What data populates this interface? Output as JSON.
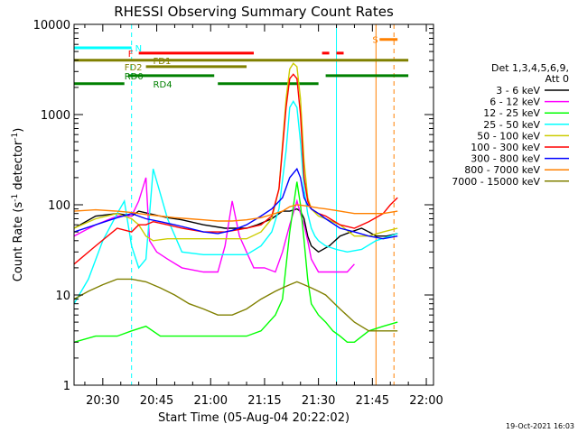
{
  "chart_data": {
    "type": "line",
    "title": "RHESSI Observing Summary Count Rates",
    "xlabel": "Start Time (05-Aug-04 20:22:02)",
    "ylabel_main": "Count Rate (s",
    "ylabel_sup1": "-1",
    "ylabel_mid": " detector",
    "ylabel_sup2": "-1",
    "ylabel_end": ")",
    "footer": "19-Oct-2021 16:03",
    "x_unit": "minutes since 20:22:02",
    "xlim": [
      0,
      100
    ],
    "ylim": [
      1,
      10000
    ],
    "y_scale": "log",
    "grid": false,
    "legend_position": "right",
    "x_ticks": [
      {
        "label": "20:30",
        "value": 8
      },
      {
        "label": "20:45",
        "value": 23
      },
      {
        "label": "21:00",
        "value": 38
      },
      {
        "label": "21:15",
        "value": 53
      },
      {
        "label": "21:30",
        "value": 68
      },
      {
        "label": "21:45",
        "value": 83
      },
      {
        "label": "22:00",
        "value": 98
      }
    ],
    "y_ticks": [
      {
        "label": "1",
        "value": 1
      },
      {
        "label": "10",
        "value": 10
      },
      {
        "label": "100",
        "value": 100
      },
      {
        "label": "1000",
        "value": 1000
      },
      {
        "label": "10000",
        "value": 10000
      }
    ],
    "legend_header": [
      "Det 1,3,4,5,6,9,",
      "Att 0"
    ],
    "series": [
      {
        "name": "3 - 6 keV",
        "color": "#000000",
        "x": [
          0,
          6,
          12,
          16,
          18,
          22,
          26,
          30,
          36,
          42,
          48,
          51,
          55,
          58,
          60,
          62,
          63,
          64,
          65,
          66,
          68,
          71,
          74,
          77,
          80,
          82,
          84,
          87,
          90
        ],
        "y": [
          55,
          75,
          80,
          75,
          85,
          78,
          72,
          68,
          60,
          55,
          55,
          60,
          70,
          85,
          85,
          90,
          85,
          70,
          45,
          35,
          30,
          35,
          45,
          50,
          55,
          50,
          45,
          45,
          48
        ]
      },
      {
        "name": "6 - 12 keV",
        "color": "#ff00ff",
        "x": [
          0,
          6,
          12,
          16,
          18,
          20,
          21,
          23,
          26,
          30,
          36,
          40,
          42,
          44,
          46,
          48,
          50,
          53,
          56,
          58,
          60,
          62,
          63,
          64,
          65,
          66,
          68,
          70,
          73,
          76,
          78
        ],
        "y": [
          45,
          60,
          75,
          75,
          110,
          200,
          40,
          30,
          25,
          20,
          18,
          18,
          35,
          110,
          45,
          30,
          20,
          20,
          18,
          30,
          60,
          110,
          80,
          60,
          40,
          25,
          18,
          18,
          18,
          18,
          22
        ]
      },
      {
        "name": "12 - 25 keV",
        "color": "#00ff00",
        "x": [
          0,
          6,
          12,
          16,
          20,
          24,
          28,
          32,
          36,
          40,
          44,
          48,
          52,
          56,
          58,
          60,
          62,
          63,
          64,
          65,
          66,
          68,
          70,
          72,
          74,
          76,
          78,
          82,
          86,
          90
        ],
        "y": [
          3,
          3.5,
          3.5,
          4,
          4.5,
          3.5,
          3.5,
          3.5,
          3.5,
          3.5,
          3.5,
          3.5,
          4,
          6,
          9,
          50,
          180,
          100,
          40,
          15,
          8,
          6,
          5,
          4,
          3.5,
          3,
          3,
          4,
          4.5,
          5
        ]
      },
      {
        "name": "25 - 50 keV",
        "color": "#00ffff",
        "x": [
          0,
          4,
          8,
          12,
          14,
          16,
          18,
          20,
          22,
          26,
          30,
          36,
          40,
          44,
          48,
          52,
          55,
          57,
          59,
          60,
          61,
          62,
          63,
          64,
          65,
          66,
          67,
          68,
          70,
          73,
          76,
          80,
          84,
          88,
          90
        ],
        "y": [
          8,
          15,
          40,
          80,
          110,
          35,
          20,
          25,
          250,
          70,
          30,
          28,
          28,
          28,
          28,
          35,
          50,
          90,
          400,
          1200,
          1400,
          1200,
          500,
          150,
          80,
          55,
          45,
          40,
          35,
          32,
          30,
          32,
          40,
          45,
          48
        ]
      },
      {
        "name": "50 - 100 keV",
        "color": "#cccc00",
        "x": [
          0,
          6,
          12,
          16,
          18,
          20,
          22,
          26,
          30,
          36,
          42,
          48,
          52,
          55,
          57,
          59,
          60,
          61,
          62,
          63,
          64,
          65,
          66,
          68,
          70,
          74,
          78,
          82,
          86,
          90
        ],
        "y": [
          55,
          70,
          80,
          70,
          60,
          45,
          40,
          42,
          42,
          42,
          42,
          42,
          50,
          70,
          150,
          1500,
          3200,
          3700,
          3400,
          1500,
          300,
          120,
          90,
          75,
          70,
          60,
          45,
          45,
          50,
          55
        ]
      },
      {
        "name": "100 - 300 keV",
        "color": "#ff0000",
        "x": [
          0,
          6,
          12,
          16,
          18,
          20,
          22,
          26,
          30,
          36,
          42,
          48,
          52,
          55,
          57,
          59,
          60,
          61,
          62,
          63,
          64,
          65,
          66,
          68,
          70,
          74,
          78,
          82,
          86,
          88,
          90
        ],
        "y": [
          22,
          35,
          55,
          50,
          60,
          60,
          65,
          60,
          55,
          50,
          50,
          55,
          60,
          75,
          150,
          1200,
          2500,
          2800,
          2500,
          1000,
          200,
          110,
          90,
          80,
          75,
          60,
          55,
          65,
          80,
          100,
          120
        ]
      },
      {
        "name": "300 - 800 keV",
        "color": "#0000ff",
        "x": [
          0,
          6,
          12,
          16,
          20,
          24,
          28,
          32,
          36,
          40,
          44,
          48,
          52,
          55,
          58,
          60,
          62,
          63,
          64,
          65,
          66,
          68,
          70,
          74,
          78,
          82,
          86,
          90
        ],
        "y": [
          50,
          60,
          72,
          80,
          70,
          65,
          60,
          55,
          50,
          48,
          52,
          60,
          75,
          90,
          120,
          200,
          250,
          200,
          120,
          100,
          90,
          80,
          70,
          55,
          50,
          45,
          42,
          45
        ]
      },
      {
        "name": "800 - 7000 keV",
        "color": "#ff8000",
        "x": [
          0,
          6,
          12,
          16,
          20,
          24,
          28,
          32,
          36,
          40,
          44,
          48,
          52,
          55,
          58,
          60,
          62,
          64,
          66,
          68,
          70,
          74,
          78,
          82,
          86,
          90
        ],
        "y": [
          85,
          88,
          85,
          82,
          78,
          75,
          72,
          70,
          68,
          66,
          66,
          68,
          72,
          78,
          85,
          95,
          100,
          98,
          95,
          92,
          90,
          85,
          80,
          80,
          80,
          85
        ]
      },
      {
        "name": "7000 - 15000 keV",
        "color": "#808000",
        "x": [
          0,
          4,
          8,
          12,
          16,
          20,
          24,
          28,
          32,
          36,
          40,
          44,
          48,
          52,
          56,
          58,
          60,
          62,
          64,
          66,
          68,
          70,
          74,
          78,
          82,
          86,
          90
        ],
        "y": [
          9,
          11,
          13,
          15,
          15,
          14,
          12,
          10,
          8,
          7,
          6,
          6,
          7,
          9,
          11,
          12,
          13,
          14,
          13,
          12,
          11,
          10,
          7,
          5,
          4,
          4,
          4
        ]
      }
    ],
    "flags": [
      {
        "label": "N",
        "color": "#00ffff",
        "y": 5500,
        "segments": [
          [
            0,
            16
          ]
        ],
        "label_at": 17
      },
      {
        "label": "F",
        "color": "#ff0000",
        "y": 4800,
        "segments": [
          [
            18,
            50
          ],
          [
            69,
            71
          ],
          [
            73,
            75
          ]
        ],
        "label_at": 15
      },
      {
        "label": "FD1",
        "color": "#808000",
        "y": 4000,
        "segments": [
          [
            0,
            93
          ]
        ],
        "label_at": 22
      },
      {
        "label": "FD2",
        "color": "#808000",
        "y": 3400,
        "segments": [
          [
            20,
            48
          ]
        ],
        "label_at": 14
      },
      {
        "label": "RD0",
        "color": "#008000",
        "y": 2700,
        "segments": [
          [
            15,
            39
          ],
          [
            70,
            93
          ]
        ],
        "label_at": 14
      },
      {
        "label": "RD4",
        "color": "#008000",
        "y": 2200,
        "segments": [
          [
            0,
            14
          ],
          [
            40,
            68
          ]
        ],
        "label_at": 22
      },
      {
        "label": "S",
        "color": "#ff8000",
        "y": 6800,
        "segments": [
          [
            85,
            90
          ]
        ],
        "label_at": 83
      }
    ],
    "vertical_markers": [
      {
        "x": 16,
        "color": "#00ffff",
        "style": "dashed"
      },
      {
        "x": 73,
        "color": "#00ffff",
        "style": "solid"
      },
      {
        "x": 84,
        "color": "#ff8000",
        "style": "solid"
      },
      {
        "x": 89,
        "color": "#ff8000",
        "style": "dashed"
      }
    ]
  }
}
